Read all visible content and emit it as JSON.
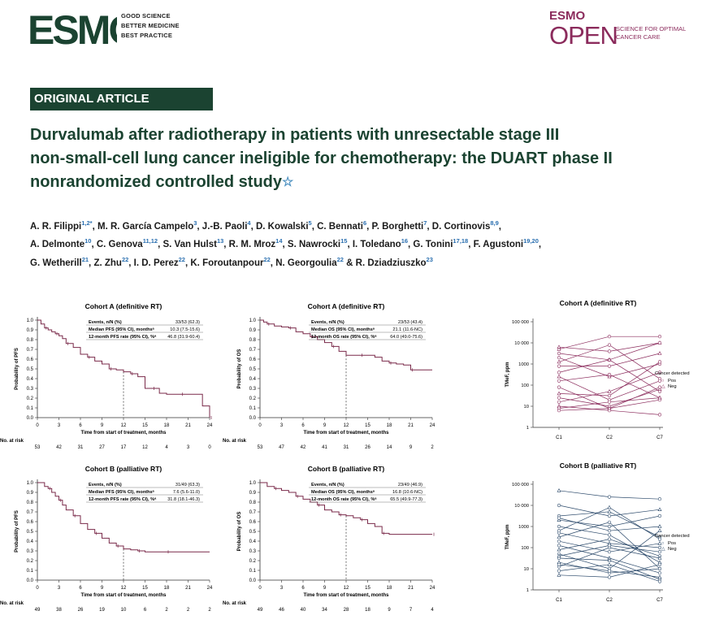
{
  "header": {
    "esmo_logo": "ESMO",
    "esmo_tagline": [
      "GOOD SCIENCE",
      "BETTER MEDICINE",
      "BEST PRACTICE"
    ],
    "open_logo_top": "ESMO",
    "open_logo_main": "OPEN",
    "open_tagline": [
      "SCIENCE FOR OPTIMAL",
      "CANCER CARE"
    ]
  },
  "article": {
    "section": "ORIGINAL ARTICLE",
    "title_lines": [
      "Durvalumab after radiotherapy in patients with unresectable stage III",
      "non-small-cell lung cancer ineligible for chemotherapy: the DUART phase II",
      "nonrandomized controlled study"
    ],
    "title_star": "☆"
  },
  "authors": [
    {
      "name": "A. R. Filippi",
      "sup": "1,2*"
    },
    {
      "name": "M. R. García Campelo",
      "sup": "3"
    },
    {
      "name": "J.-B. Paoli",
      "sup": "4"
    },
    {
      "name": "D. Kowalski",
      "sup": "5"
    },
    {
      "name": "C. Bennati",
      "sup": "6"
    },
    {
      "name": "P. Borghetti",
      "sup": "7"
    },
    {
      "name": "D. Cortinovis",
      "sup": "8,9"
    },
    {
      "name": "A. Delmonte",
      "sup": "10"
    },
    {
      "name": "C. Genova",
      "sup": "11,12"
    },
    {
      "name": "S. Van Hulst",
      "sup": "13"
    },
    {
      "name": "R. M. Mroz",
      "sup": "14"
    },
    {
      "name": "S. Nawrocki",
      "sup": "15"
    },
    {
      "name": "I. Toledano",
      "sup": "16"
    },
    {
      "name": "G. Tonini",
      "sup": "17,18"
    },
    {
      "name": "F. Agustoni",
      "sup": "19,20"
    },
    {
      "name": "G. Wetherill",
      "sup": "21"
    },
    {
      "name": "Z. Zhu",
      "sup": "22"
    },
    {
      "name": "I. D. Perez",
      "sup": "22"
    },
    {
      "name": "K. Foroutanpour",
      "sup": "22"
    },
    {
      "name": "N. Georgoulia",
      "sup": "22"
    },
    {
      "name": "R. Dziadziuszko",
      "sup": "23"
    }
  ],
  "author_connector": "&",
  "chart_data": [
    {
      "type": "line",
      "title": "Cohort A (definitive RT)",
      "xlabel": "Time from start of treatment, months",
      "ylabel": "Probability of PFS",
      "x_ticks": [
        0,
        3,
        6,
        9,
        12,
        15,
        18,
        21,
        24
      ],
      "y_ticks": [
        0.0,
        0.1,
        0.2,
        0.3,
        0.4,
        0.5,
        0.6,
        0.7,
        0.8,
        0.9,
        1.0
      ],
      "xlim": [
        0,
        24
      ],
      "ylim": [
        0,
        1
      ],
      "marker_month": 12,
      "stats": [
        {
          "label": "Events, n/N (%)",
          "value": "33/53 (62.3)"
        },
        {
          "label": "Median PFS (95% CI), monthsᵃ",
          "value": "10.3 (7.5-15.6)"
        },
        {
          "label": "12-month PFS rate (95% CI), %ᵃ",
          "value": "46.8 (31.9-60.4)"
        }
      ],
      "risk_label": "No. at risk",
      "at_risk": [
        "53",
        "42",
        "31",
        "27",
        "17",
        "12",
        "4",
        "3",
        "0"
      ],
      "x": [
        0,
        0.5,
        1,
        1.5,
        2,
        2.5,
        3,
        3.5,
        4,
        5,
        6,
        7,
        8,
        9,
        10,
        11,
        12,
        13,
        14,
        15,
        16,
        17,
        18,
        20,
        22,
        23,
        24
      ],
      "y": [
        1.0,
        0.96,
        0.92,
        0.9,
        0.88,
        0.86,
        0.84,
        0.81,
        0.76,
        0.72,
        0.65,
        0.62,
        0.58,
        0.55,
        0.5,
        0.49,
        0.47,
        0.45,
        0.42,
        0.3,
        0.3,
        0.25,
        0.24,
        0.24,
        0.24,
        0.12,
        0.0
      ]
    },
    {
      "type": "line",
      "title": "Cohort A (definitive RT)",
      "xlabel": "Time from start of treatment, months",
      "ylabel": "Probability of OS",
      "x_ticks": [
        0,
        3,
        6,
        9,
        12,
        15,
        18,
        21,
        24
      ],
      "y_ticks": [
        0.0,
        0.1,
        0.2,
        0.3,
        0.4,
        0.5,
        0.6,
        0.7,
        0.8,
        0.9,
        1.0
      ],
      "xlim": [
        0,
        24
      ],
      "ylim": [
        0,
        1
      ],
      "marker_month": 12,
      "stats": [
        {
          "label": "Events, n/N (%)",
          "value": "23/53 (43.4)"
        },
        {
          "label": "Median OS (95% CI), monthsᵃ",
          "value": "21.1 (11.6-NC)"
        },
        {
          "label": "12-month OS rate (95% CI), %ᵃ",
          "value": "64.0 (49.0-75.6)"
        }
      ],
      "risk_label": "No. at risk",
      "at_risk": [
        "53",
        "47",
        "42",
        "41",
        "31",
        "26",
        "14",
        "9",
        "2"
      ],
      "x": [
        0,
        0.5,
        1,
        2,
        3,
        4,
        5,
        6,
        7,
        8,
        9,
        10,
        11,
        12,
        14,
        16,
        17,
        18,
        19,
        20,
        21,
        22,
        24
      ],
      "y": [
        1.0,
        0.98,
        0.96,
        0.94,
        0.93,
        0.92,
        0.88,
        0.86,
        0.83,
        0.8,
        0.77,
        0.73,
        0.68,
        0.64,
        0.64,
        0.62,
        0.58,
        0.56,
        0.55,
        0.54,
        0.49,
        0.49,
        0.49
      ]
    },
    {
      "type": "scatter",
      "title": "Cohort A (definitive RT)",
      "xlabel": "",
      "ylabel": "TMeF, ppm",
      "categories": [
        "C1",
        "C2",
        "C7"
      ],
      "y_ticks": [
        "1",
        "10",
        "100",
        "1000",
        "10 000",
        "100 000"
      ],
      "legend_title": "Cancer detected",
      "legend": [
        {
          "marker": "○",
          "label": "Pos"
        },
        {
          "marker": "△",
          "label": "Neg"
        }
      ],
      "color": "#8b2b5c",
      "series_log10": [
        [
          3.7,
          4.3,
          4.3
        ],
        [
          3.5,
          3.2,
          4.0
        ],
        [
          3.3,
          2.4,
          3.0
        ],
        [
          3.1,
          3.9,
          2.3
        ],
        [
          2.9,
          2.9,
          3.5
        ],
        [
          2.6,
          3.2,
          1.7
        ],
        [
          2.4,
          1.3,
          2.2
        ],
        [
          2.2,
          2.5,
          1.4
        ],
        [
          1.9,
          0.9,
          1.3
        ],
        [
          1.6,
          1.5,
          3.1
        ],
        [
          1.4,
          1.0,
          1.8
        ],
        [
          1.2,
          1.7,
          2.6
        ],
        [
          1.0,
          0.8,
          0.6
        ],
        [
          0.9,
          1.2,
          1.4
        ],
        [
          0.8,
          0.9,
          1.9
        ],
        [
          3.8,
          3.6,
          4.0
        ]
      ]
    },
    {
      "type": "line",
      "title": "Cohort B (palliative RT)",
      "xlabel": "Time from start of treatment, months",
      "ylabel": "Probability of PFS",
      "x_ticks": [
        0,
        3,
        6,
        9,
        12,
        15,
        18,
        21,
        24
      ],
      "y_ticks": [
        0.0,
        0.1,
        0.2,
        0.3,
        0.4,
        0.5,
        0.6,
        0.7,
        0.8,
        0.9,
        1.0
      ],
      "xlim": [
        0,
        24
      ],
      "ylim": [
        0,
        1
      ],
      "marker_month": 12,
      "stats": [
        {
          "label": "Events, n/N (%)",
          "value": "31/49 (63.3)"
        },
        {
          "label": "Median PFS (95% CI), monthsᵃ",
          "value": "7.6 (5.6-11.0)"
        },
        {
          "label": "12-month PFS rate (95% CI), %ᵃ",
          "value": "31.8 (18.1-46.3)"
        }
      ],
      "risk_label": "No. at risk",
      "at_risk": [
        "49",
        "38",
        "26",
        "19",
        "10",
        "6",
        "2",
        "2",
        "2"
      ],
      "x": [
        0,
        1,
        1.5,
        2,
        2.5,
        3,
        3.5,
        4,
        5,
        6,
        7,
        8,
        9,
        10,
        11,
        12,
        13,
        14,
        15,
        16,
        18,
        24
      ],
      "y": [
        1.0,
        0.96,
        0.94,
        0.9,
        0.86,
        0.82,
        0.77,
        0.72,
        0.66,
        0.58,
        0.52,
        0.48,
        0.43,
        0.38,
        0.35,
        0.32,
        0.31,
        0.3,
        0.29,
        0.29,
        0.29,
        0.29
      ]
    },
    {
      "type": "line",
      "title": "Cohort B (palliative RT)",
      "xlabel": "Time from start of treatment, months",
      "ylabel": "Probability of OS",
      "x_ticks": [
        0,
        3,
        6,
        9,
        12,
        15,
        18,
        21,
        24
      ],
      "y_ticks": [
        0.0,
        0.1,
        0.2,
        0.3,
        0.4,
        0.5,
        0.6,
        0.7,
        0.8,
        0.9,
        1.0
      ],
      "xlim": [
        0,
        24
      ],
      "ylim": [
        0,
        1
      ],
      "marker_month": 12,
      "stats": [
        {
          "label": "Events, n/N (%)",
          "value": "23/49 (46.9)"
        },
        {
          "label": "Median OS (95% CI), monthsᵃ",
          "value": "16.8 (10.6-NC)"
        },
        {
          "label": "12-month OS rate (95% CI), %ᵃ",
          "value": "65.5 (49.9-77.3)"
        }
      ],
      "risk_label": "No. at risk",
      "at_risk": [
        "49",
        "46",
        "40",
        "34",
        "28",
        "18",
        "9",
        "7",
        "4"
      ],
      "x": [
        0,
        1,
        2,
        3,
        4,
        5,
        6,
        7,
        8,
        9,
        10,
        11,
        12,
        13,
        14,
        15,
        16,
        17,
        18,
        21,
        24
      ],
      "y": [
        1.0,
        0.96,
        0.94,
        0.92,
        0.9,
        0.86,
        0.83,
        0.8,
        0.77,
        0.72,
        0.7,
        0.67,
        0.66,
        0.64,
        0.62,
        0.58,
        0.55,
        0.48,
        0.47,
        0.47,
        0.47
      ]
    },
    {
      "type": "scatter",
      "title": "Cohort B (palliative RT)",
      "xlabel": "",
      "ylabel": "TMeF, ppm",
      "categories": [
        "C1",
        "C2",
        "C7"
      ],
      "y_ticks": [
        "1",
        "10",
        "100",
        "1000",
        "10 000",
        "100 000"
      ],
      "legend_title": "Cancer detected",
      "legend": [
        {
          "marker": "○",
          "label": "Pos"
        },
        {
          "marker": "△",
          "label": "Neg"
        }
      ],
      "color": "#2c4a6b",
      "series_log10": [
        [
          4.7,
          4.4,
          4.3
        ],
        [
          4.0,
          3.5,
          3.8
        ],
        [
          3.5,
          3.7,
          2.5
        ],
        [
          3.3,
          3.0,
          3.5
        ],
        [
          3.0,
          2.6,
          1.3
        ],
        [
          2.7,
          2.2,
          2.0
        ],
        [
          2.5,
          3.2,
          1.0
        ],
        [
          2.3,
          1.8,
          2.2
        ],
        [
          2.1,
          1.5,
          0.8
        ],
        [
          1.9,
          2.4,
          1.6
        ],
        [
          1.7,
          1.0,
          2.8
        ],
        [
          1.5,
          1.4,
          0.5
        ],
        [
          1.3,
          0.8,
          1.0
        ],
        [
          1.1,
          2.0,
          1.5
        ],
        [
          0.9,
          1.2,
          0.4
        ],
        [
          0.7,
          0.6,
          1.2
        ],
        [
          3.4,
          2.8,
          3.0
        ],
        [
          2.8,
          3.9,
          2.4
        ],
        [
          1.6,
          2.1,
          1.8
        ],
        [
          1.2,
          0.9,
          0.6
        ]
      ]
    }
  ]
}
